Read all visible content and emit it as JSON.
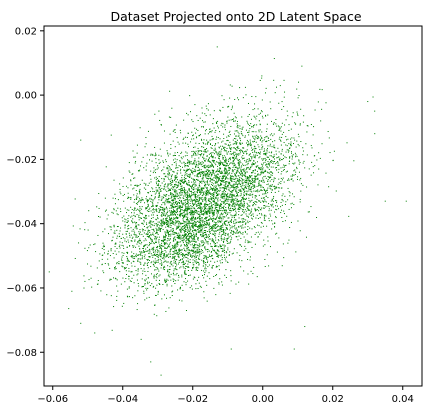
{
  "chart_data": {
    "type": "scatter",
    "title": "Dataset Projected onto 2D Latent Space",
    "xlabel": "",
    "ylabel": "",
    "xlim": [
      -0.0625,
      0.0455
    ],
    "ylim": [
      -0.0905,
      0.0215
    ],
    "x_ticks": [
      -0.06,
      -0.04,
      -0.02,
      0.0,
      0.02,
      0.04
    ],
    "y_ticks": [
      -0.08,
      -0.06,
      -0.04,
      -0.02,
      0.0,
      0.02
    ],
    "x_tick_labels": [
      "−0.06",
      "−0.04",
      "−0.02",
      "0.00",
      "0.02",
      "0.04"
    ],
    "y_tick_labels": [
      "−0.08",
      "−0.06",
      "−0.04",
      "−0.02",
      "0.00",
      "0.02"
    ],
    "grid": false,
    "legend": "none",
    "marker_color": "#008000",
    "series": [
      {
        "clusters": [
          {
            "x_mean": -0.012,
            "y_mean": -0.027,
            "x_std": 0.0115,
            "y_std": 0.0105,
            "corr": 0.35,
            "count": 3200
          },
          {
            "x_mean": -0.023,
            "y_mean": -0.042,
            "x_std": 0.0105,
            "y_std": 0.0095,
            "corr": 0.3,
            "count": 2600
          }
        ],
        "outliers": [
          {
            "x": -0.061,
            "y": -0.055
          },
          {
            "x": -0.052,
            "y": -0.014
          },
          {
            "x": -0.013,
            "y": 0.015
          },
          {
            "x": 0.032,
            "y": -0.012
          },
          {
            "x": 0.035,
            "y": -0.033
          },
          {
            "x": 0.041,
            "y": -0.033
          },
          {
            "x": 0.03,
            "y": -0.002
          },
          {
            "x": -0.032,
            "y": -0.083
          },
          {
            "x": -0.009,
            "y": -0.079
          },
          {
            "x": 0.009,
            "y": -0.079
          },
          {
            "x": 0.012,
            "y": -0.072
          },
          {
            "x": -0.048,
            "y": -0.074
          },
          {
            "x": -0.052,
            "y": -0.071
          }
        ]
      }
    ]
  }
}
